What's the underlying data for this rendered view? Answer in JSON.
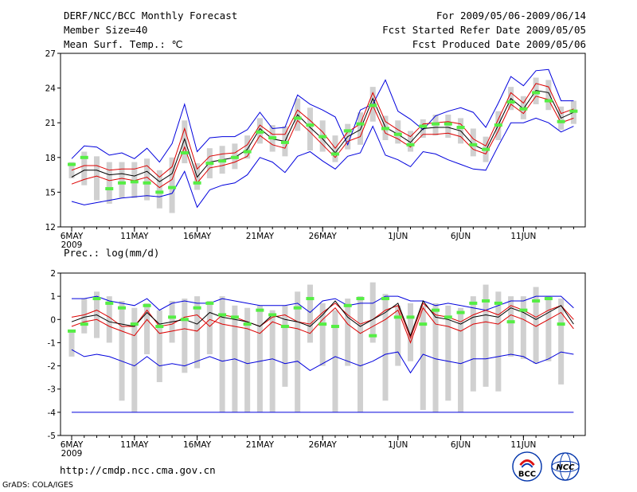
{
  "header": {
    "title": "DERF/NCC/BCC Monthly Forecast",
    "member": "Member Size=40",
    "variable": "Mean Surf. Temp.: ℃",
    "period": "For 2009/05/06-2009/06/14",
    "started": "Fcst Started Refer Date 2009/05/05",
    "produced": "Fcst Produced Date 2009/05/06"
  },
  "footer": {
    "url": "http://cmdp.ncc.cma.gov.cn",
    "grads": "GrADS: COLA/IGES",
    "logo_left": "BCC",
    "logo_right": "NCC"
  },
  "colors": {
    "envelope": "#0000dd",
    "spread": "#dd0000",
    "mean": "#000000",
    "obs": "#55ee44",
    "bar": "#d0d0d0"
  },
  "chart_data": [
    {
      "type": "line",
      "title": "Mean Surf. Temp.: ℃",
      "xlabel": "",
      "ylabel": "℃",
      "ylim": [
        12,
        27
      ],
      "yticks": [
        "12",
        "15",
        "18",
        "21",
        "24",
        "27"
      ],
      "day_count": 40,
      "xtick_labels": [
        {
          "day": 0,
          "label": "6MAY",
          "sub": "2009"
        },
        {
          "day": 5,
          "label": "11MAY"
        },
        {
          "day": 10,
          "label": "16MAY"
        },
        {
          "day": 15,
          "label": "21MAY"
        },
        {
          "day": 20,
          "label": "26MAY"
        },
        {
          "day": 26,
          "label": "1JUN"
        },
        {
          "day": 31,
          "label": "6JUN"
        },
        {
          "day": 36,
          "label": "11JUN"
        }
      ],
      "series": [
        {
          "name": "max",
          "color": "#0000dd",
          "values": [
            17.9,
            19.0,
            18.9,
            18.2,
            18.4,
            17.9,
            18.8,
            17.6,
            19.2,
            22.6,
            18.5,
            19.7,
            19.8,
            19.8,
            20.4,
            21.9,
            20.5,
            20.6,
            23.4,
            22.6,
            22.1,
            21.5,
            19.1,
            22.1,
            22.6,
            24.7,
            22.0,
            21.3,
            20.4,
            21.6,
            22.0,
            22.3,
            21.9,
            20.6,
            22.7,
            25.0,
            24.2,
            25.5,
            25.6,
            22.9,
            22.9
          ]
        },
        {
          "name": "upper",
          "color": "#dd0000",
          "values": [
            16.9,
            17.3,
            17.3,
            16.9,
            17.0,
            17.0,
            17.3,
            16.3,
            17.2,
            20.5,
            17.0,
            18.1,
            18.3,
            18.4,
            19.1,
            20.8,
            20.0,
            20.0,
            22.1,
            21.2,
            20.2,
            18.8,
            20.2,
            20.9,
            23.6,
            21.1,
            20.4,
            19.8,
            20.9,
            21.0,
            21.1,
            20.9,
            19.6,
            19.0,
            21.3,
            23.6,
            22.7,
            24.4,
            24.1,
            21.8,
            22.2
          ]
        },
        {
          "name": "mean",
          "color": "#000000",
          "values": [
            16.3,
            16.9,
            16.9,
            16.5,
            16.6,
            16.4,
            16.8,
            15.9,
            16.6,
            19.6,
            16.3,
            17.6,
            17.8,
            18.0,
            18.7,
            20.5,
            19.6,
            19.4,
            21.7,
            20.6,
            19.6,
            18.4,
            19.8,
            20.4,
            23.1,
            20.6,
            20.0,
            19.3,
            20.5,
            20.6,
            20.6,
            20.3,
            19.1,
            18.6,
            20.8,
            23.1,
            22.2,
            23.8,
            23.6,
            21.4,
            21.9
          ]
        },
        {
          "name": "lower",
          "color": "#dd0000",
          "values": [
            15.7,
            16.1,
            16.4,
            16.0,
            16.2,
            16.0,
            16.3,
            15.4,
            16.1,
            18.9,
            15.8,
            17.1,
            17.3,
            17.6,
            18.1,
            19.9,
            19.1,
            18.8,
            21.2,
            20.2,
            19.1,
            18.0,
            19.4,
            19.8,
            22.5,
            20.1,
            19.6,
            18.9,
            20.0,
            20.0,
            20.1,
            19.8,
            18.7,
            18.3,
            20.3,
            22.6,
            21.8,
            23.3,
            23.0,
            21.0,
            21.4
          ]
        },
        {
          "name": "min",
          "color": "#0000dd",
          "values": [
            14.2,
            13.9,
            14.1,
            14.3,
            14.5,
            14.6,
            14.7,
            14.6,
            14.9,
            16.8,
            13.7,
            15.2,
            15.6,
            15.8,
            16.5,
            18.0,
            17.6,
            16.7,
            18.1,
            18.5,
            17.7,
            17.0,
            18.1,
            18.4,
            20.7,
            18.2,
            17.8,
            17.2,
            18.5,
            18.3,
            17.8,
            17.4,
            17.0,
            16.9,
            19.0,
            21.0,
            21.0,
            21.4,
            21.0,
            20.2,
            20.7
          ]
        },
        {
          "name": "obs",
          "color": "#55ee44",
          "values": [
            17.4,
            18.0,
            null,
            15.3,
            15.8,
            15.9,
            15.8,
            15.0,
            15.4,
            18.4,
            15.8,
            17.5,
            17.7,
            18.0,
            18.5,
            20.2,
            19.7,
            19.3,
            21.4,
            20.8,
            19.8,
            18.3,
            20.3,
            20.9,
            22.5,
            20.5,
            20.0,
            19.1,
            20.7,
            20.9,
            20.9,
            20.6,
            19.1,
            18.7,
            20.8,
            22.8,
            22.2,
            23.6,
            22.9,
            21.1,
            22.0
          ]
        }
      ],
      "bars": {
        "low": [
          16.2,
          15.6,
          14.3,
          14.0,
          14.5,
          14.5,
          14.3,
          13.6,
          13.2,
          17.5,
          15.2,
          16.2,
          16.6,
          17.0,
          17.9,
          19.2,
          18.5,
          18.1,
          20.3,
          18.6,
          18.5,
          17.6,
          18.7,
          19.1,
          21.1,
          19.5,
          19.2,
          18.5,
          19.7,
          19.9,
          19.7,
          19.2,
          18.1,
          17.6,
          19.5,
          22.1,
          21.3,
          22.6,
          22.1,
          20.4,
          20.9
        ],
        "high": [
          17.6,
          18.5,
          18.1,
          17.6,
          17.6,
          17.6,
          17.9,
          16.9,
          18.0,
          21.2,
          17.5,
          18.8,
          19.0,
          19.2,
          19.9,
          21.4,
          20.8,
          20.7,
          23.1,
          22.3,
          21.2,
          19.9,
          20.9,
          21.9,
          24.1,
          21.6,
          21.2,
          20.3,
          21.3,
          21.7,
          21.7,
          21.4,
          20.5,
          19.8,
          22.0,
          24.1,
          23.3,
          24.9,
          24.7,
          22.4,
          22.9
        ]
      }
    },
    {
      "type": "line",
      "title": "Prec.: log(mm/d)",
      "xlabel": "",
      "ylabel": "log(mm/d)",
      "ylim": [
        -5,
        2
      ],
      "yticks": [
        "-5",
        "-4",
        "-3",
        "-2",
        "-1",
        "0",
        "1",
        "2"
      ],
      "day_count": 40,
      "xtick_labels": [
        {
          "day": 0,
          "label": "6MAY",
          "sub": "2009"
        },
        {
          "day": 5,
          "label": "11MAY"
        },
        {
          "day": 10,
          "label": "16MAY"
        },
        {
          "day": 15,
          "label": "21MAY"
        },
        {
          "day": 20,
          "label": "26MAY"
        },
        {
          "day": 26,
          "label": "1JUN"
        },
        {
          "day": 31,
          "label": "6JUN"
        },
        {
          "day": 36,
          "label": "11JUN"
        }
      ],
      "reference_line": -4,
      "series": [
        {
          "name": "max",
          "color": "#0000dd",
          "values": [
            0.9,
            0.9,
            1.0,
            0.8,
            0.7,
            0.6,
            0.9,
            0.4,
            0.7,
            0.8,
            0.7,
            0.7,
            0.9,
            0.8,
            0.7,
            0.6,
            0.6,
            0.6,
            0.7,
            0.3,
            0.8,
            0.9,
            0.6,
            0.7,
            0.7,
            1.0,
            1.0,
            0.8,
            0.8,
            0.6,
            0.7,
            0.6,
            0.5,
            0.4,
            0.6,
            0.8,
            0.8,
            1.0,
            1.0,
            1.0,
            0.5
          ]
        },
        {
          "name": "upper",
          "color": "#dd0000",
          "values": [
            0.1,
            0.2,
            0.4,
            0.1,
            -0.3,
            -0.3,
            0.4,
            -0.3,
            -0.2,
            0.1,
            0.2,
            -0.3,
            0.2,
            0.1,
            -0.1,
            -0.3,
            0.1,
            0.2,
            -0.1,
            -0.2,
            0.3,
            0.7,
            0.2,
            -0.2,
            0.0,
            0.4,
            0.6,
            -0.8,
            0.7,
            0.2,
            0.1,
            -0.1,
            0.2,
            0.4,
            0.2,
            0.6,
            0.4,
            0.1,
            0.4,
            0.6,
            0.0
          ]
        },
        {
          "name": "mean",
          "color": "#000000",
          "values": [
            -0.1,
            0.1,
            0.2,
            -0.1,
            -0.2,
            -0.3,
            0.3,
            -0.2,
            -0.1,
            0.0,
            -0.2,
            0.3,
            0.1,
            0.0,
            -0.1,
            -0.3,
            0.2,
            0.0,
            -0.1,
            -0.3,
            0.2,
            0.8,
            0.1,
            -0.3,
            0.0,
            0.3,
            0.7,
            -0.7,
            0.8,
            0.1,
            0.0,
            -0.2,
            0.1,
            0.2,
            0.1,
            0.5,
            0.3,
            0.0,
            0.3,
            0.6,
            -0.2
          ]
        },
        {
          "name": "lower",
          "color": "#dd0000",
          "values": [
            -0.3,
            -0.1,
            0.0,
            -0.3,
            -0.5,
            -0.7,
            0.0,
            -0.6,
            -0.5,
            -0.4,
            -0.5,
            0.0,
            -0.2,
            -0.3,
            -0.4,
            -0.6,
            -0.1,
            -0.3,
            -0.4,
            -0.6,
            0.0,
            0.5,
            -0.2,
            -0.6,
            -0.3,
            0.0,
            0.4,
            -1.0,
            0.5,
            -0.2,
            -0.3,
            -0.5,
            -0.2,
            -0.1,
            -0.2,
            0.2,
            0.0,
            -0.3,
            0.0,
            0.3,
            -0.4
          ]
        },
        {
          "name": "min",
          "color": "#0000dd",
          "values": [
            -1.3,
            -1.6,
            -1.5,
            -1.6,
            -1.8,
            -2.0,
            -1.6,
            -2.0,
            -1.9,
            -2.0,
            -1.8,
            -1.6,
            -1.8,
            -1.7,
            -1.9,
            -1.8,
            -1.7,
            -1.9,
            -1.8,
            -2.2,
            -1.9,
            -1.6,
            -1.8,
            -2.0,
            -1.8,
            -1.5,
            -1.4,
            -2.3,
            -1.5,
            -1.7,
            -1.8,
            -1.9,
            -1.7,
            -1.7,
            -1.6,
            -1.5,
            -1.6,
            -1.9,
            -1.7,
            -1.4,
            -1.5
          ]
        },
        {
          "name": "obs",
          "color": "#55ee44",
          "values": [
            -0.5,
            -0.2,
            0.9,
            0.7,
            0.5,
            -0.2,
            0.6,
            -0.3,
            0.1,
            0.0,
            0.5,
            0.7,
            0.2,
            0.1,
            -0.2,
            0.4,
            0.2,
            -0.3,
            0.5,
            0.9,
            -0.2,
            -0.3,
            0.6,
            0.9,
            -0.7,
            0.9,
            0.1,
            0.1,
            -0.2,
            0.4,
            0.1,
            0.3,
            0.7,
            0.8,
            0.7,
            -0.1,
            0.4,
            0.8,
            0.9,
            -0.2,
            null
          ]
        }
      ],
      "bars": {
        "low": [
          -1.6,
          -0.6,
          -0.8,
          -1.0,
          -3.5,
          -4.0,
          -1.5,
          -2.7,
          -1.0,
          -2.3,
          -2.1,
          -1.5,
          -4.0,
          -4.0,
          -4.0,
          -4.0,
          -4.0,
          -2.9,
          -4.0,
          -1.0,
          -2.0,
          -4.0,
          -2.0,
          -4.0,
          -1.0,
          -3.5,
          -2.0,
          -1.8,
          -3.9,
          -4.0,
          -3.5,
          -4.0,
          -3.1,
          -2.9,
          -3.1,
          -1.6,
          -1.7,
          -1.9,
          -1.8,
          -2.8,
          null
        ],
        "high": [
          -0.5,
          0.9,
          1.2,
          1.0,
          0.8,
          0.5,
          0.7,
          0.4,
          0.8,
          0.9,
          1.0,
          0.8,
          1.0,
          0.6,
          0.5,
          0.6,
          0.4,
          0.6,
          1.2,
          1.5,
          0.7,
          0.4,
          0.9,
          1.0,
          1.6,
          1.1,
          0.6,
          0.7,
          0.6,
          0.7,
          0.6,
          0.5,
          1.0,
          1.5,
          1.2,
          1.0,
          1.0,
          1.4,
          1.0,
          0.9,
          null
        ]
      }
    }
  ]
}
